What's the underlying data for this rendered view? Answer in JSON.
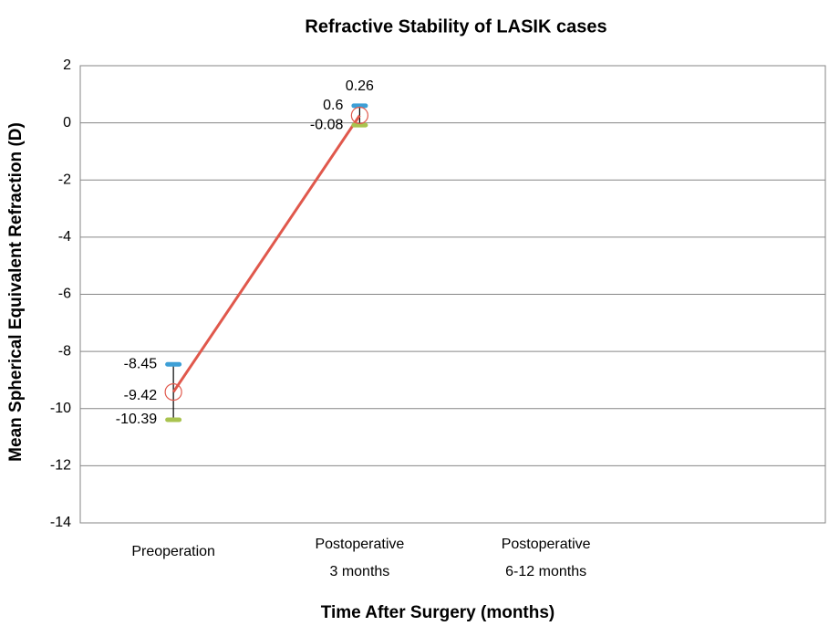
{
  "chart_data": {
    "type": "line",
    "title": "Refractive Stability of LASIK cases",
    "x_label": "Time After Surgery (months)",
    "y_label": "Mean Spherical Equivalent Refraction (D)",
    "categories": [
      [
        "Preoperation"
      ],
      [
        "Postoperative",
        "3 months"
      ],
      [
        "Postoperative",
        "6-12 months"
      ],
      null
    ],
    "series": [
      {
        "color": "#e0584c",
        "values": [
          -9.42,
          0.26,
          null,
          null
        ]
      },
      {
        "color": "#3d9fd6",
        "values": [
          -8.45,
          0.6,
          null,
          null
        ]
      },
      {
        "color": "#a9c34f",
        "values": [
          -10.39,
          -0.08,
          null,
          null
        ]
      }
    ],
    "error_bar_color": "#000000",
    "ylim": [
      -14,
      2
    ],
    "yticks": [
      -14,
      -12,
      -10,
      -8,
      -6,
      -4,
      -2,
      0,
      2
    ],
    "grid": true
  }
}
